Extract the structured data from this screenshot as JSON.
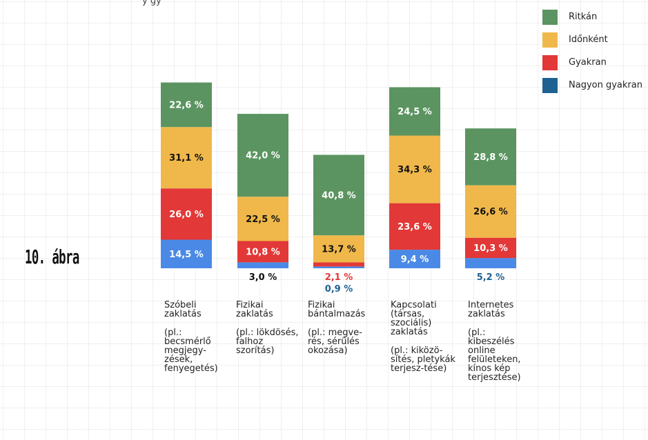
{
  "figure_label": "10. ábra",
  "top_fragment": "y gy",
  "colors": {
    "ritkan": "#5b9460",
    "idonkent": "#f0b84a",
    "gyakran": "#e23837",
    "nagyon_gyakran": "#4a8ae6",
    "legend_nagyon_gyakran": "#1f6191",
    "label_white": "#ffffff",
    "label_black": "#111111",
    "label_red": "#e23837",
    "label_blue": "#1f6191"
  },
  "legend": [
    {
      "label": "Ritkán",
      "color": "#5b9460"
    },
    {
      "label": "Időnként",
      "color": "#f0b84a"
    },
    {
      "label": "Gyakran",
      "color": "#e23837"
    },
    {
      "label": "Nagyon gyakran",
      "color": "#1f6191"
    }
  ],
  "categories": [
    {
      "name": "Szóbeli zaklatás",
      "note": "(pl.: becsmérlő megjegy-zések, fenyegetés)"
    },
    {
      "name": "Fizikai zaklatás",
      "note": "(pl.: lökdösés, falhoz szorítás)"
    },
    {
      "name": "Fizikai bántalmazás",
      "note": "(pl.: megve-rés, sérülés okozása)"
    },
    {
      "name": "Kapcsolati (társas, szociális) zaklatás",
      "note": "(pl.: kiközö-sítés, pletykák terjesz-tése)"
    },
    {
      "name": "Internetes zaklatás",
      "note": "(pl.: kibeszélés online felületeken, kínos kép terjesztése)"
    }
  ],
  "chart_data": {
    "type": "bar",
    "stacked": true,
    "unit": "%",
    "categories": [
      "Szóbeli zaklatás",
      "Fizikai zaklatás",
      "Fizikai bántalmazás",
      "Kapcsolati (társas, szociális) zaklatás",
      "Internetes zaklatás"
    ],
    "series": [
      {
        "name": "Nagyon gyakran",
        "values": [
          14.5,
          3.0,
          0.9,
          9.4,
          5.2
        ],
        "labels": [
          "14,5 %",
          "3,0 %",
          "0,9 %",
          "9,4 %",
          "5,2 %"
        ]
      },
      {
        "name": "Gyakran",
        "values": [
          26.0,
          10.8,
          2.1,
          23.6,
          10.3
        ],
        "labels": [
          "26,0 %",
          "10,8 %",
          "2,1 %",
          "23,6 %",
          "10,3 %"
        ]
      },
      {
        "name": "Időnként",
        "values": [
          31.1,
          22.5,
          13.7,
          34.3,
          26.6
        ],
        "labels": [
          "31,1 %",
          "22,5 %",
          "13,7 %",
          "34,3 %",
          "26,6 %"
        ]
      },
      {
        "name": "Ritkán",
        "values": [
          22.6,
          42.0,
          40.8,
          24.5,
          28.8
        ],
        "labels": [
          "22,6 %",
          "42,0 %",
          "40,8 %",
          "24,5 %",
          "28,8 %"
        ]
      }
    ],
    "legend_position": "top-right",
    "grid": true
  }
}
